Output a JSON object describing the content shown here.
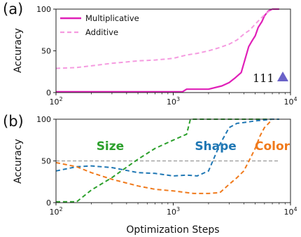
{
  "chart_data": [
    {
      "type": "line",
      "panel_label": "(a)",
      "ylabel": "Accuracy",
      "xlabel": "",
      "xscale": "log",
      "xlim": [
        100,
        10000
      ],
      "ylim": [
        0,
        100
      ],
      "xticks": [
        100,
        1000,
        10000
      ],
      "xtick_labels": [
        [
          "10",
          "2"
        ],
        [
          "10",
          "3"
        ],
        [
          "10",
          "4"
        ]
      ],
      "yticks": [
        0,
        50,
        100
      ],
      "legend": "top-left",
      "annotation": {
        "text": "111",
        "marker": "triangle",
        "marker_color": "#6a62c8"
      },
      "series": [
        {
          "name": "Multiplicative",
          "color": "#e01fb8",
          "dash": "solid",
          "x": [
            100,
            300,
            1000,
            1200,
            1300,
            2000,
            2600,
            3000,
            3400,
            3800,
            4100,
            4400,
            4700,
            5000,
            5300,
            5700,
            6000,
            6500,
            7000,
            8000
          ],
          "y": [
            1,
            1,
            1,
            1,
            4,
            4,
            8,
            12,
            18,
            24,
            40,
            55,
            62,
            68,
            78,
            85,
            92,
            98,
            100,
            100
          ]
        },
        {
          "name": "Additive",
          "color": "#f59be0",
          "dash": "dashed",
          "x": [
            100,
            150,
            200,
            300,
            500,
            700,
            1000,
            1300,
            1600,
            2000,
            2500,
            3000,
            3500,
            4000,
            4500,
            5000,
            5500,
            6000,
            6500,
            7000
          ],
          "y": [
            29,
            30,
            32,
            35,
            38,
            39,
            41,
            45,
            47,
            50,
            54,
            58,
            63,
            70,
            75,
            82,
            88,
            93,
            97,
            100
          ]
        }
      ]
    },
    {
      "type": "line",
      "panel_label": "(b)",
      "ylabel": "Accuracy",
      "xlabel": "Optimization Steps",
      "xscale": "log",
      "xlim": [
        100,
        10000
      ],
      "ylim": [
        0,
        100
      ],
      "xticks": [
        100,
        1000,
        10000
      ],
      "xtick_labels": [
        [
          "10",
          "2"
        ],
        [
          "10",
          "3"
        ],
        [
          "10",
          "4"
        ]
      ],
      "yticks": [
        0,
        50,
        100
      ],
      "reference_line": {
        "y": 50,
        "color": "#999999"
      },
      "series": [
        {
          "name": "Size",
          "color": "#2ca02c",
          "dash": "dashed",
          "x": [
            100,
            150,
            200,
            300,
            500,
            700,
            1000,
            1300,
            1400,
            2000,
            3000,
            5000,
            8000
          ],
          "y": [
            1,
            1,
            15,
            30,
            52,
            65,
            75,
            82,
            100,
            100,
            100,
            100,
            100
          ],
          "label_pos": {
            "x": 290,
            "y": 68
          }
        },
        {
          "name": "Shape",
          "color": "#1f77b4",
          "dash": "dashed",
          "x": [
            100,
            150,
            200,
            300,
            500,
            700,
            1000,
            1300,
            1600,
            2000,
            2500,
            3000,
            3500,
            4000,
            5000,
            6000,
            7000,
            8000
          ],
          "y": [
            38,
            43,
            44,
            42,
            36,
            35,
            32,
            33,
            32,
            38,
            70,
            90,
            95,
            96,
            98,
            99,
            100,
            100
          ],
          "label_pos": {
            "x": 2300,
            "y": 68
          }
        },
        {
          "name": "Color",
          "color": "#f07a1c",
          "dash": "dashed",
          "x": [
            100,
            150,
            200,
            300,
            500,
            700,
            1000,
            1500,
            2000,
            2500,
            3000,
            3500,
            4000,
            4500,
            5000,
            5500,
            6000,
            6500,
            7000
          ],
          "y": [
            48,
            43,
            36,
            28,
            20,
            16,
            14,
            11,
            11,
            12,
            22,
            30,
            38,
            52,
            65,
            80,
            90,
            95,
            100
          ],
          "label_pos": {
            "x": 7000,
            "y": 68
          }
        }
      ]
    }
  ]
}
